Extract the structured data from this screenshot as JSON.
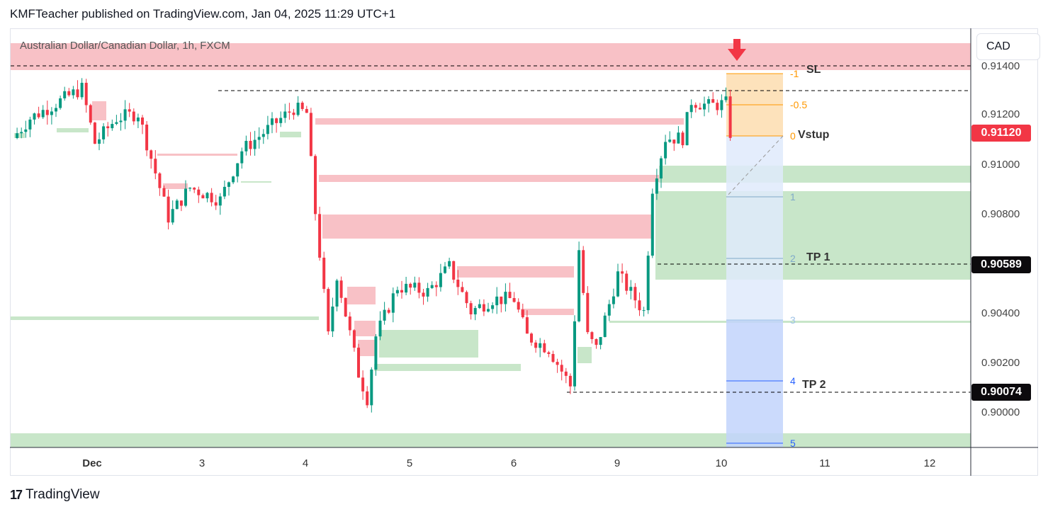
{
  "header": {
    "published": "KMFTeacher published on TradingView.com, Jan 04, 2025 11:29 UTC+1"
  },
  "symbol": "Australian Dollar/Canadian Dollar, 1h, FXCM",
  "currency_button": "CAD",
  "footer": {
    "logo": "17",
    "brand": "TradingView"
  },
  "price_labels": {
    "current": "0.91120",
    "tp1": "0.90589",
    "tp2": "0.90074"
  },
  "colors": {
    "up": "#089981",
    "down": "#f23645",
    "supply": "#f8c1c6",
    "demand": "#c8e6c9",
    "entry_zone": "#fde2bb",
    "target_light": "#dfeafb",
    "target_dark": "#c2d4fb"
  },
  "annotations": {
    "sl": "SL",
    "entry": "Vstup",
    "tp1": "TP 1",
    "tp2": "TP 2"
  },
  "fib_levels": [
    "-1",
    "-0.5",
    "0",
    "1",
    "2",
    "3",
    "4",
    "5"
  ],
  "chart_data": {
    "type": "candlestick",
    "title": "Australian Dollar/Canadian Dollar, 1h, FXCM",
    "xlabel": "",
    "ylabel": "CAD",
    "x_ticks": [
      "Dec",
      "3",
      "4",
      "5",
      "6",
      "9",
      "10",
      "11",
      "12"
    ],
    "y_ticks": [
      "0.91400",
      "0.91200",
      "0.91000",
      "0.90800",
      "0.90400",
      "0.90200",
      "0.90000"
    ],
    "ylim": [
      0.8984,
      0.915
    ],
    "close_path": [
      [
        0,
        0.911
      ],
      [
        4,
        0.9118
      ],
      [
        11,
        0.9125
      ],
      [
        16,
        0.913
      ],
      [
        19,
        0.9108
      ],
      [
        24,
        0.9118
      ],
      [
        29,
        0.912
      ],
      [
        34,
        0.909
      ],
      [
        36,
        0.9078
      ],
      [
        41,
        0.909
      ],
      [
        48,
        0.9085
      ],
      [
        53,
        0.9105
      ],
      [
        60,
        0.9115
      ],
      [
        65,
        0.9122
      ],
      [
        68,
        0.912
      ],
      [
        70,
        0.908
      ],
      [
        73,
        0.903
      ],
      [
        75,
        0.9055
      ],
      [
        80,
        0.9015
      ],
      [
        82,
        0.9005
      ],
      [
        84,
        0.903
      ],
      [
        89,
        0.905
      ],
      [
        96,
        0.9048
      ],
      [
        101,
        0.9058
      ],
      [
        106,
        0.904
      ],
      [
        111,
        0.9045
      ],
      [
        116,
        0.9045
      ],
      [
        119,
        0.903
      ],
      [
        124,
        0.9025
      ],
      [
        129,
        0.901
      ],
      [
        131,
        0.9065
      ],
      [
        133,
        0.903
      ],
      [
        135,
        0.9025
      ],
      [
        140,
        0.9055
      ],
      [
        146,
        0.904
      ],
      [
        148,
        0.909
      ],
      [
        151,
        0.911
      ],
      [
        155,
        0.911
      ],
      [
        157,
        0.9125
      ],
      [
        161,
        0.9123
      ],
      [
        165,
        0.9124
      ],
      [
        166,
        0.9112
      ]
    ],
    "levels": {
      "stop_loss": 0.9139,
      "entry": 0.9112,
      "tp1": 0.90589,
      "tp2": 0.90074,
      "last_price": 0.9112
    }
  }
}
